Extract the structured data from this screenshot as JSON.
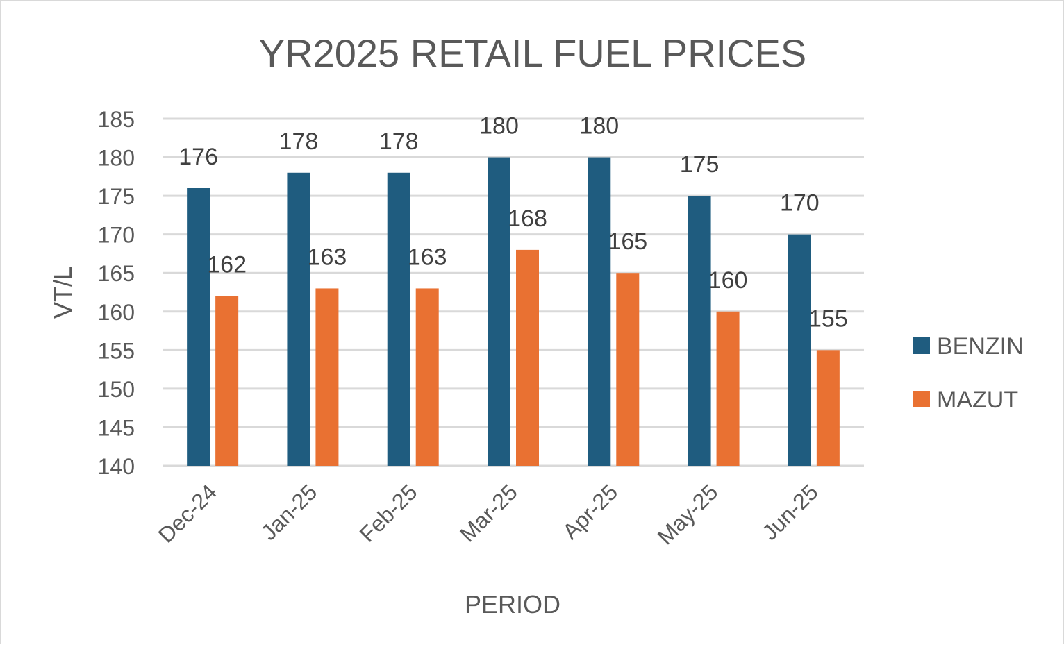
{
  "chart_data": {
    "type": "bar",
    "title": "YR2025 RETAIL FUEL PRICES",
    "xlabel": "PERIOD",
    "ylabel": "VT/L",
    "categories": [
      "Dec-24",
      "Jan-25",
      "Feb-25",
      "Mar-25",
      "Apr-25",
      "May-25",
      "Jun-25"
    ],
    "ylim": [
      140,
      185
    ],
    "yticks": [
      140,
      145,
      150,
      155,
      160,
      165,
      170,
      175,
      180,
      185
    ],
    "grid": true,
    "legend_position": "right",
    "data_labels": true,
    "series": [
      {
        "name": "BENZIN",
        "color": "#1f5c7f",
        "values": [
          176,
          178,
          178,
          180,
          180,
          175,
          170
        ]
      },
      {
        "name": "MAZUT",
        "color": "#e97132",
        "values": [
          162,
          163,
          163,
          168,
          165,
          160,
          155
        ]
      }
    ]
  }
}
